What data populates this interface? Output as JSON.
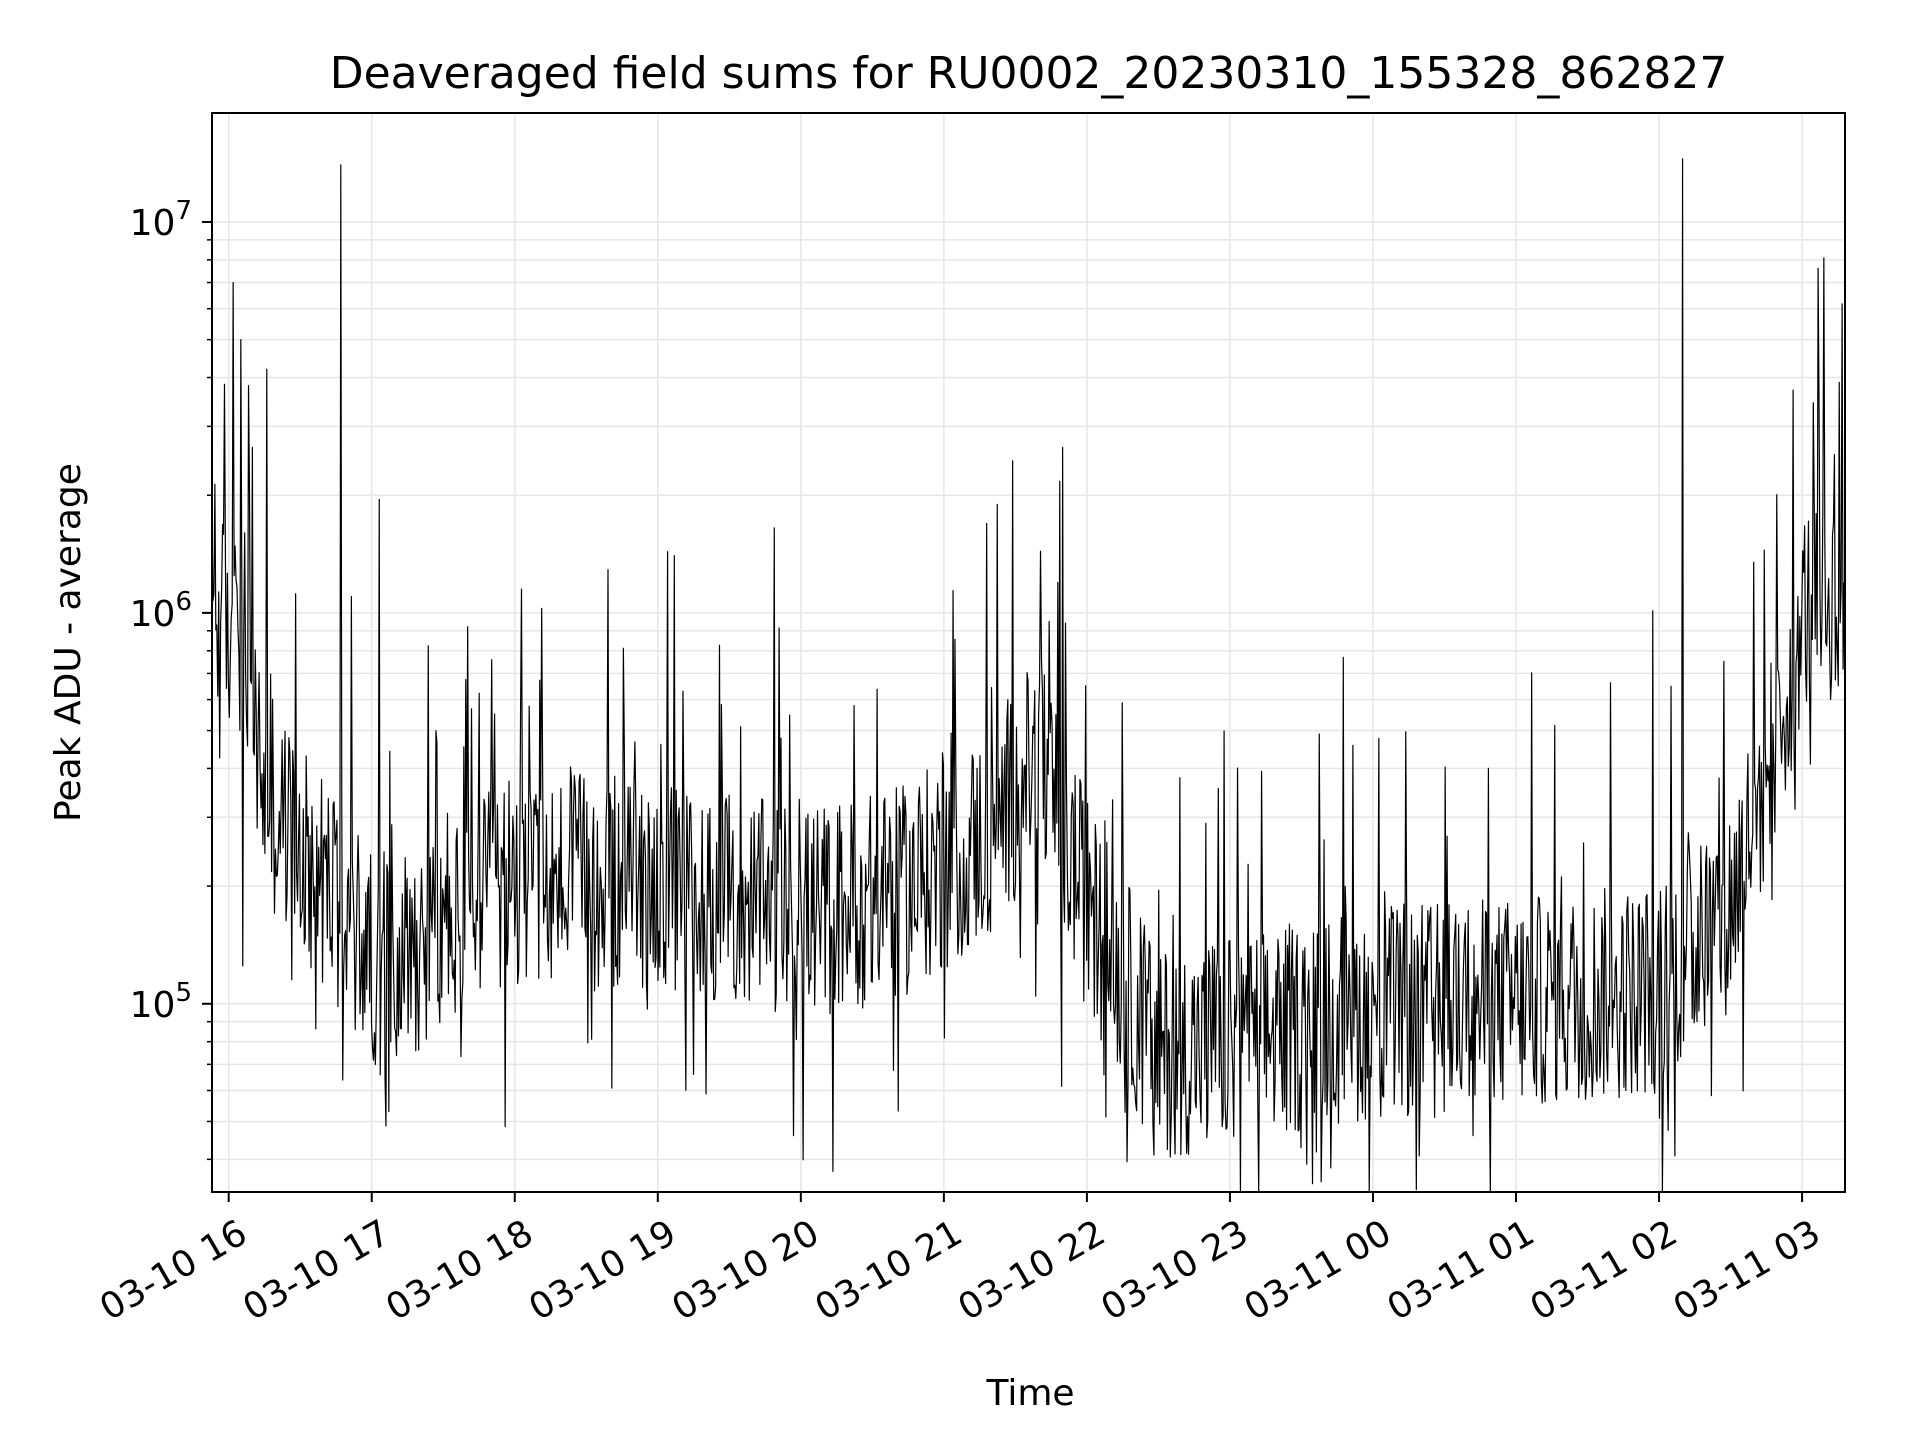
{
  "chart_data": {
    "type": "line",
    "title": "Deaveraged field sums for RU0002_20230310_155328_862827",
    "xlabel": "Time",
    "ylabel": "Peak ADU - average",
    "yscale": "log",
    "ylim": [
      33000,
      19000000
    ],
    "xlim": [
      "2023-03-10T15:53:00",
      "2023-03-11T03:18:00"
    ],
    "grid": true,
    "line_color": "#000000",
    "grid_color": "#e6e6e6",
    "x_ticks": [
      {
        "label": "03-10 16",
        "t": "2023-03-10T16:00:00"
      },
      {
        "label": "03-10 17",
        "t": "2023-03-10T17:00:00"
      },
      {
        "label": "03-10 18",
        "t": "2023-03-10T18:00:00"
      },
      {
        "label": "03-10 19",
        "t": "2023-03-10T19:00:00"
      },
      {
        "label": "03-10 20",
        "t": "2023-03-10T20:00:00"
      },
      {
        "label": "03-10 21",
        "t": "2023-03-10T21:00:00"
      },
      {
        "label": "03-10 22",
        "t": "2023-03-10T22:00:00"
      },
      {
        "label": "03-10 23",
        "t": "2023-03-10T23:00:00"
      },
      {
        "label": "03-11 00",
        "t": "2023-03-11T00:00:00"
      },
      {
        "label": "03-11 01",
        "t": "2023-03-11T01:00:00"
      },
      {
        "label": "03-11 02",
        "t": "2023-03-11T02:00:00"
      },
      {
        "label": "03-11 03",
        "t": "2023-03-11T03:00:00"
      }
    ],
    "y_ticks": [
      {
        "base": "10",
        "exp": "5",
        "value": 100000
      },
      {
        "base": "10",
        "exp": "6",
        "value": 1000000
      },
      {
        "base": "10",
        "exp": "7",
        "value": 10000000
      }
    ],
    "series": [
      {
        "baseline": [
          {
            "t": "2023-03-10T15:53:00",
            "v": 1000000
          },
          {
            "t": "2023-03-10T16:05:00",
            "v": 850000
          },
          {
            "t": "2023-03-10T16:15:00",
            "v": 350000
          },
          {
            "t": "2023-03-10T16:30:00",
            "v": 250000
          },
          {
            "t": "2023-03-10T16:50:00",
            "v": 170000
          },
          {
            "t": "2023-03-10T17:00:00",
            "v": 130000
          },
          {
            "t": "2023-03-10T17:30:00",
            "v": 150000
          },
          {
            "t": "2023-03-10T18:00:00",
            "v": 210000
          },
          {
            "t": "2023-03-10T19:00:00",
            "v": 200000
          },
          {
            "t": "2023-03-10T20:00:00",
            "v": 170000
          },
          {
            "t": "2023-03-10T20:40:00",
            "v": 190000
          },
          {
            "t": "2023-03-10T21:15:00",
            "v": 260000
          },
          {
            "t": "2023-03-10T21:40:00",
            "v": 420000
          },
          {
            "t": "2023-03-10T22:00:00",
            "v": 180000
          },
          {
            "t": "2023-03-10T22:30:00",
            "v": 75000
          },
          {
            "t": "2023-03-10T23:00:00",
            "v": 80000
          },
          {
            "t": "2023-03-11T00:00:00",
            "v": 95000
          },
          {
            "t": "2023-03-11T01:00:00",
            "v": 100000
          },
          {
            "t": "2023-03-11T02:00:00",
            "v": 110000
          },
          {
            "t": "2023-03-11T02:30:00",
            "v": 180000
          },
          {
            "t": "2023-03-11T02:50:00",
            "v": 500000
          },
          {
            "t": "2023-03-11T03:00:00",
            "v": 1000000
          },
          {
            "t": "2023-03-11T03:18:00",
            "v": 1150000
          }
        ],
        "spikes": [
          {
            "t": "2023-03-10T16:02:00",
            "v": 7000000
          },
          {
            "t": "2023-03-10T16:05:00",
            "v": 5000000
          },
          {
            "t": "2023-03-10T16:16:00",
            "v": 4200000
          },
          {
            "t": "2023-03-10T16:47:00",
            "v": 14000000
          },
          {
            "t": "2023-03-10T17:03:00",
            "v": 1950000
          },
          {
            "t": "2023-03-10T18:03:00",
            "v": 1150000
          },
          {
            "t": "2023-03-10T19:49:00",
            "v": 1650000
          },
          {
            "t": "2023-03-10T21:29:00",
            "v": 2450000
          },
          {
            "t": "2023-03-10T21:50:00",
            "v": 2650000
          },
          {
            "t": "2023-03-11T02:10:00",
            "v": 14500000
          },
          {
            "t": "2023-03-11T03:07:00",
            "v": 3350000
          }
        ],
        "dips": [
          {
            "t": "2023-03-10T16:06:00",
            "v": 125000
          },
          {
            "t": "2023-03-10T17:07:00",
            "v": 53000
          },
          {
            "t": "2023-03-10T19:57:00",
            "v": 46000
          },
          {
            "t": "2023-03-10T22:28:00",
            "v": 41000
          },
          {
            "t": "2023-03-11T00:42:00",
            "v": 46000
          },
          {
            "t": "2023-03-11T02:00:00",
            "v": 51000
          }
        ]
      }
    ]
  }
}
